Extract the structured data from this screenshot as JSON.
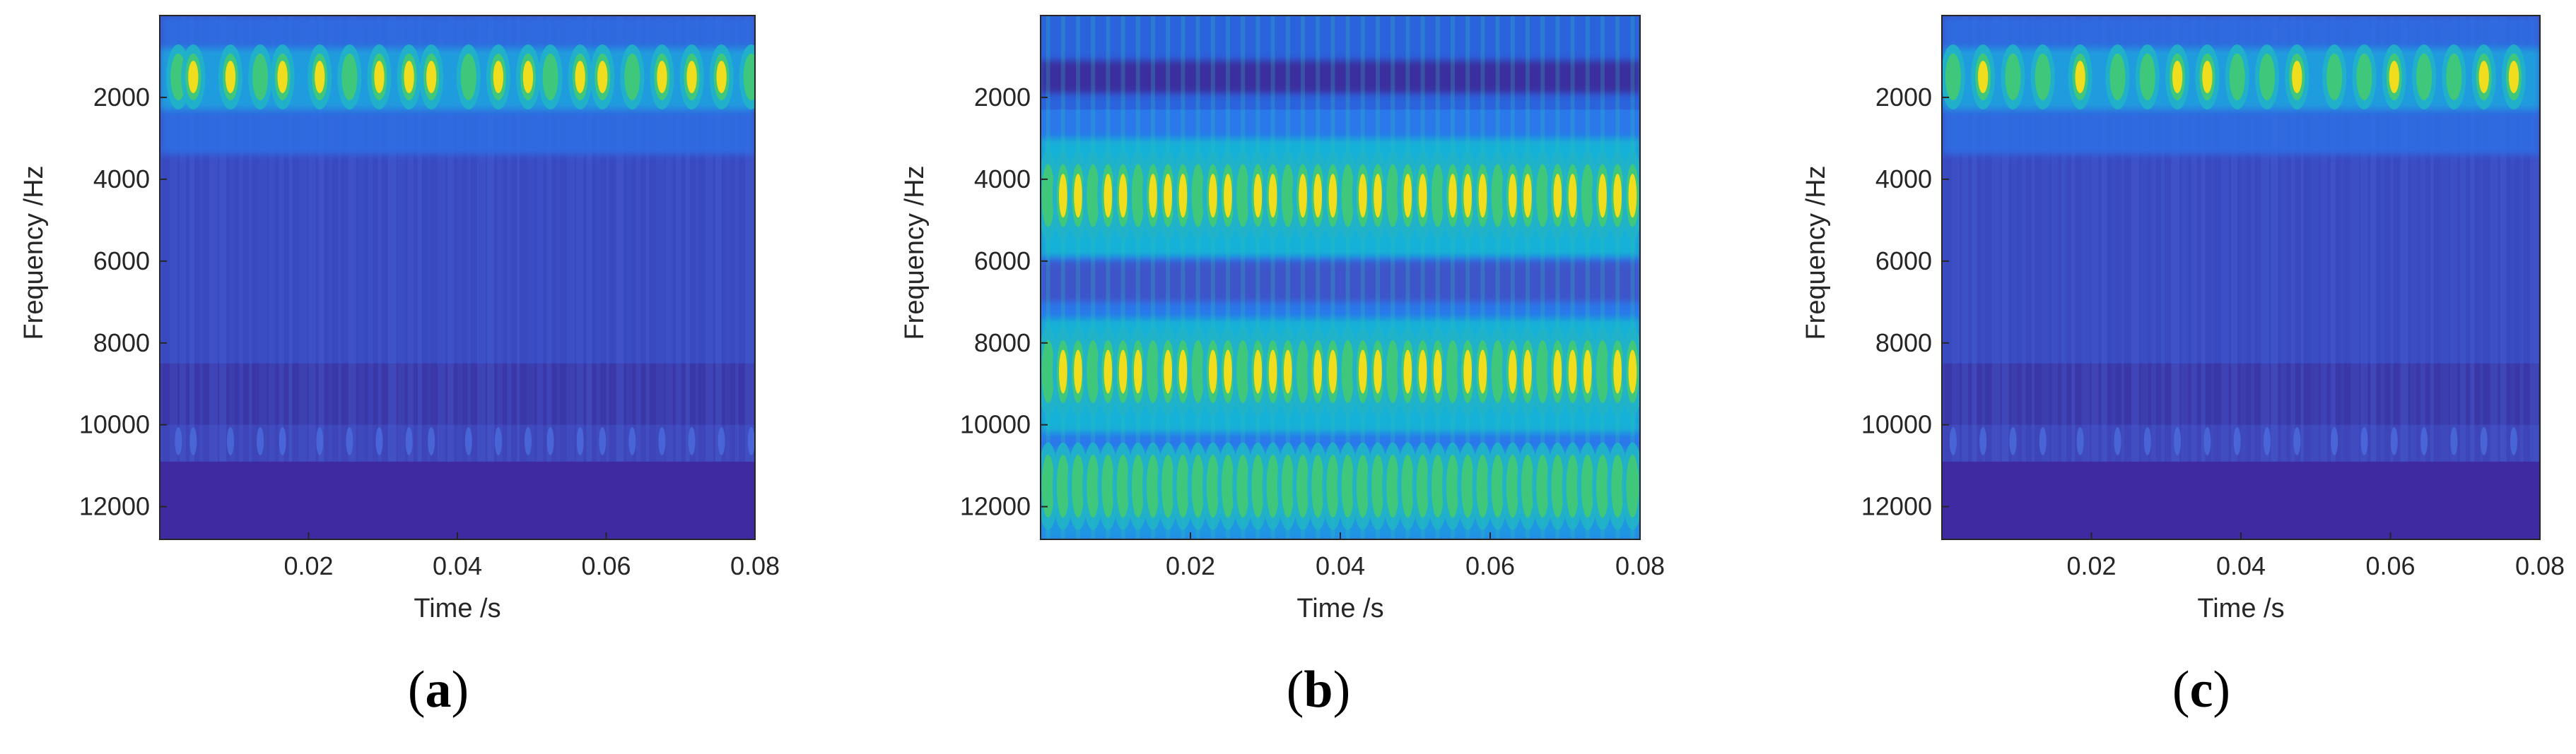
{
  "colors": {
    "background": "#3f2aa1",
    "low": "#4135a8",
    "mid": "#2d6fe8",
    "cyan": "#1ab5d8",
    "green": "#2ec58f",
    "yellow": "#f4e11d",
    "axis": "#262626"
  },
  "chart_data": [
    {
      "type": "heatmap",
      "panel_label": "a",
      "xlabel": "Time /s",
      "ylabel": "Frequency /Hz",
      "xlim": [
        0,
        0.08
      ],
      "ylim": [
        12800,
        0
      ],
      "xticks": [
        0.02,
        0.04,
        0.06,
        0.08
      ],
      "xtick_labels": [
        "0.02",
        "0.04",
        "0.06",
        "0.08"
      ],
      "yticks": [
        2000,
        4000,
        6000,
        8000,
        10000,
        12000
      ],
      "ytick_labels": [
        "2000",
        "4000",
        "6000",
        "8000",
        "10000",
        "12000"
      ],
      "colormap": "parula",
      "frequency_bands": [
        {
          "center_hz": 1500,
          "relative_intensity": 1.0
        },
        {
          "center_hz": 10400,
          "relative_intensity": 0.2
        }
      ],
      "peak_times_s": [
        0.0025,
        0.0045,
        0.0095,
        0.0135,
        0.0165,
        0.0215,
        0.0255,
        0.0295,
        0.0335,
        0.0365,
        0.0415,
        0.0455,
        0.0495,
        0.0525,
        0.0565,
        0.0595,
        0.0635,
        0.0675,
        0.0715,
        0.0755,
        0.0795
      ]
    },
    {
      "type": "heatmap",
      "panel_label": "b",
      "xlabel": "Time /s",
      "ylabel": "Frequency /Hz",
      "xlim": [
        0,
        0.08
      ],
      "ylim": [
        12800,
        0
      ],
      "xticks": [
        0.02,
        0.04,
        0.06,
        0.08
      ],
      "xtick_labels": [
        "0.02",
        "0.04",
        "0.06",
        "0.08"
      ],
      "yticks": [
        2000,
        4000,
        6000,
        8000,
        10000,
        12000
      ],
      "ytick_labels": [
        "2000",
        "4000",
        "6000",
        "8000",
        "10000",
        "12000"
      ],
      "colormap": "parula",
      "frequency_bands": [
        {
          "center_hz": 4400,
          "relative_intensity": 1.0
        },
        {
          "center_hz": 8700,
          "relative_intensity": 1.0
        },
        {
          "center_hz": 11500,
          "relative_intensity": 0.5
        }
      ],
      "peak_times_s": [
        0.001,
        0.003,
        0.005,
        0.007,
        0.009,
        0.011,
        0.013,
        0.015,
        0.017,
        0.019,
        0.021,
        0.023,
        0.025,
        0.027,
        0.029,
        0.031,
        0.033,
        0.035,
        0.037,
        0.039,
        0.041,
        0.043,
        0.045,
        0.047,
        0.049,
        0.051,
        0.053,
        0.055,
        0.057,
        0.059,
        0.061,
        0.063,
        0.065,
        0.067,
        0.069,
        0.071,
        0.073,
        0.075,
        0.077,
        0.079
      ]
    },
    {
      "type": "heatmap",
      "panel_label": "c",
      "xlabel": "Time /s",
      "ylabel": "Frequency /Hz",
      "xlim": [
        0,
        0.08
      ],
      "ylim": [
        12800,
        0
      ],
      "xticks": [
        0.02,
        0.04,
        0.06,
        0.08
      ],
      "xtick_labels": [
        "0.02",
        "0.04",
        "0.06",
        "0.08"
      ],
      "yticks": [
        2000,
        4000,
        6000,
        8000,
        10000,
        12000
      ],
      "ytick_labels": [
        "2000",
        "4000",
        "6000",
        "8000",
        "10000",
        "12000"
      ],
      "colormap": "parula",
      "frequency_bands": [
        {
          "center_hz": 1500,
          "relative_intensity": 0.9
        },
        {
          "center_hz": 10400,
          "relative_intensity": 0.15
        }
      ],
      "peak_times_s": [
        0.0015,
        0.0055,
        0.0095,
        0.0135,
        0.0185,
        0.0235,
        0.0275,
        0.0315,
        0.0355,
        0.0395,
        0.0435,
        0.0475,
        0.0525,
        0.0565,
        0.0605,
        0.0645,
        0.0685,
        0.0725,
        0.0765
      ]
    }
  ]
}
